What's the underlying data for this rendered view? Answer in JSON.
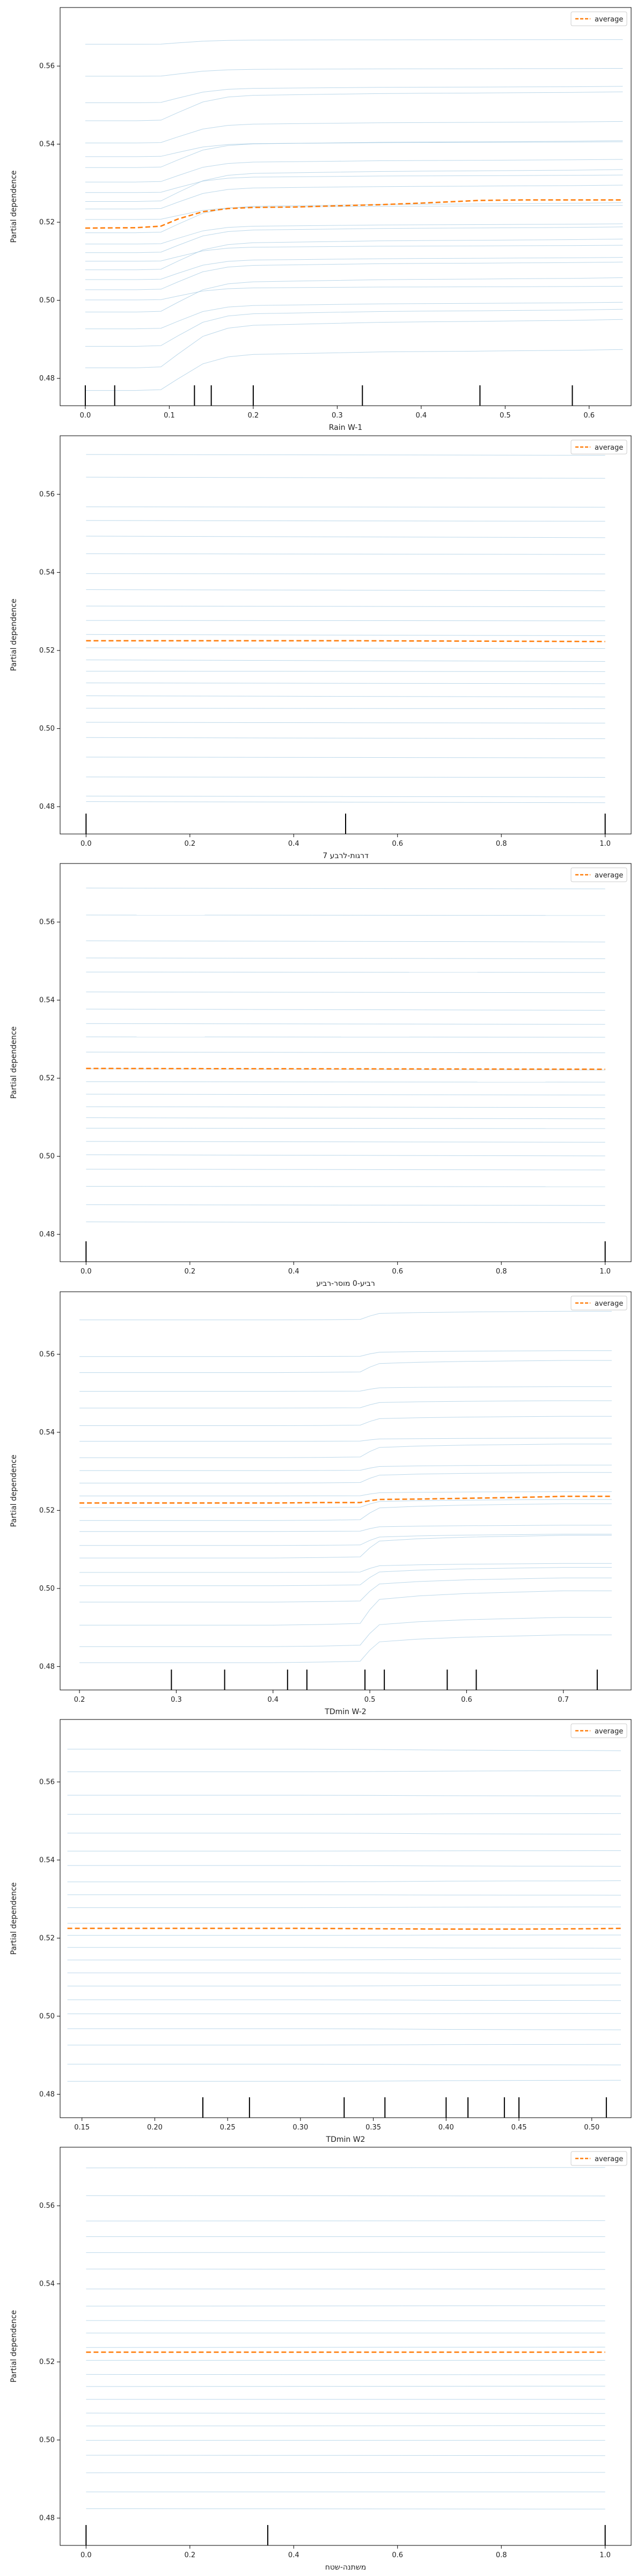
{
  "figure": {
    "panel_count": 6
  },
  "chart_data": [
    {
      "type": "line",
      "xlabel": "Rain W-1",
      "ylabel": "Partial dependence",
      "xlim": [
        -0.03,
        0.65
      ],
      "ylim": [
        0.473,
        0.575
      ],
      "xticks": [
        0.0,
        0.1,
        0.2,
        0.3,
        0.4,
        0.5,
        0.6
      ],
      "xtick_labels": [
        "0.0",
        "0.1",
        "0.2",
        "0.3",
        "0.4",
        "0.5",
        "0.6"
      ],
      "yticks": [
        0.48,
        0.5,
        0.52,
        0.54,
        0.56
      ],
      "ytick_labels": [
        "0.48",
        "0.50",
        "0.52",
        "0.54",
        "0.56"
      ],
      "grid": false,
      "legend": {
        "position": "top-right",
        "entries": [
          "average"
        ]
      },
      "colors": {
        "average": "#ff7f0e",
        "individual": "#a6cbe3",
        "rug": "#000000"
      },
      "x": [
        0.0,
        0.06,
        0.09,
        0.11,
        0.14,
        0.17,
        0.2,
        0.25,
        0.3,
        0.35,
        0.4,
        0.47,
        0.52,
        0.58,
        0.64
      ],
      "series": [
        {
          "name": "average",
          "values": [
            0.5185,
            0.5186,
            0.519,
            0.5208,
            0.5227,
            0.5235,
            0.5238,
            0.5239,
            0.5242,
            0.5245,
            0.5249,
            0.5256,
            0.5257,
            0.5257,
            0.5257
          ]
        }
      ],
      "ice_offsets": [
        0.0471,
        0.0389,
        0.0321,
        0.0275,
        0.0218,
        0.0183,
        0.0155,
        0.0118,
        0.0091,
        0.0068,
        0.0049,
        0.0022,
        -0.0012,
        -0.0041,
        -0.0063,
        -0.0085,
        -0.0107,
        -0.0132,
        -0.0158,
        -0.0184,
        -0.0215,
        -0.0258,
        -0.0303,
        -0.0358,
        -0.0416
      ],
      "ice_shape": [
        0,
        0,
        0.02,
        0.28,
        0.65,
        0.82,
        0.88,
        0.9,
        0.92,
        0.94,
        0.95,
        0.96,
        0.97,
        0.98,
        1.0
      ],
      "ice_amp": [
        0.0012,
        0.002,
        0.0042,
        0.0074,
        0.0055,
        0.0038,
        0.0069,
        0.0058,
        0.0045,
        0.0082,
        0.0061,
        0.0036,
        0.0077,
        0.0052,
        0.0066,
        0.0041,
        0.0079,
        0.0057,
        0.0071,
        0.0035,
        0.0088,
        0.0068,
        0.0095,
        0.0124,
        0.0105
      ],
      "rug": [
        0.0,
        0.035,
        0.13,
        0.15,
        0.2,
        0.33,
        0.47,
        0.58
      ]
    },
    {
      "type": "line",
      "xlabel": "7 דרגות-לרבע",
      "ylabel": "Partial dependence",
      "xlim": [
        -0.05,
        1.05
      ],
      "ylim": [
        0.473,
        0.575
      ],
      "xticks": [
        0.0,
        0.2,
        0.4,
        0.6,
        0.8,
        1.0
      ],
      "xtick_labels": [
        "0.0",
        "0.2",
        "0.4",
        "0.6",
        "0.8",
        "1.0"
      ],
      "yticks": [
        0.48,
        0.5,
        0.52,
        0.54,
        0.56
      ],
      "ytick_labels": [
        "0.48",
        "0.50",
        "0.52",
        "0.54",
        "0.56"
      ],
      "grid": false,
      "legend": {
        "position": "top-right",
        "entries": [
          "average"
        ]
      },
      "colors": {
        "average": "#ff7f0e",
        "individual": "#a6cbe3",
        "rug": "#000000"
      },
      "x": [
        0.0,
        0.5,
        1.0
      ],
      "series": [
        {
          "name": "average",
          "values": [
            0.5225,
            0.5225,
            0.5223
          ]
        }
      ],
      "ice_offsets": [
        0.0477,
        0.0419,
        0.0343,
        0.0308,
        0.0268,
        0.0223,
        0.0172,
        0.0131,
        0.0089,
        0.0052,
        0.0016,
        -0.0018,
        -0.0049,
        -0.0078,
        -0.0108,
        -0.0141,
        -0.0173,
        -0.0209,
        -0.0248,
        -0.0298,
        -0.0349,
        -0.0398,
        -0.0412
      ],
      "ice_shape": [
        0,
        0.5,
        1.0
      ],
      "ice_amp": [
        -0.0002,
        -0.0003,
        -0.0001,
        -0.0002,
        -0.0004,
        -0.0002,
        -0.0001,
        -0.0003,
        -0.0002,
        -0.0001,
        -0.0003,
        -0.0002,
        -0.0004,
        -0.0001,
        -0.0002,
        -0.0003,
        -0.0001,
        -0.0002,
        -0.0003,
        -0.0002,
        -0.0001,
        -0.0002,
        -0.0003
      ],
      "rug": [
        0.0,
        0.5,
        1.0
      ]
    },
    {
      "type": "line",
      "xlabel": "רביע-0 מוסר-רביע",
      "ylabel": "Partial dependence",
      "xlim": [
        -0.05,
        1.05
      ],
      "ylim": [
        0.473,
        0.575
      ],
      "xticks": [
        0.0,
        0.2,
        0.4,
        0.6,
        0.8,
        1.0
      ],
      "xtick_labels": [
        "0.0",
        "0.2",
        "0.4",
        "0.6",
        "0.8",
        "1.0"
      ],
      "yticks": [
        0.48,
        0.5,
        0.52,
        0.54,
        0.56
      ],
      "ytick_labels": [
        "0.48",
        "0.50",
        "0.52",
        "0.54",
        "0.56"
      ],
      "grid": false,
      "legend": {
        "position": "top-right",
        "entries": [
          "average"
        ]
      },
      "colors": {
        "average": "#ff7f0e",
        "individual": "#a6cbe3",
        "rug": "#000000"
      },
      "x": [
        0.0,
        1.0
      ],
      "series": [
        {
          "name": "average",
          "values": [
            0.5225,
            0.5223
          ]
        }
      ],
      "ice_offsets": [
        0.0462,
        0.0393,
        0.0327,
        0.0283,
        0.0247,
        0.0196,
        0.0152,
        0.0115,
        0.0081,
        0.0042,
        -0.0001,
        -0.0034,
        -0.0066,
        -0.0098,
        -0.0126,
        -0.0153,
        -0.0187,
        -0.0221,
        -0.0258,
        -0.0302,
        -0.0349,
        -0.0393
      ],
      "ice_shape": [
        0,
        1.0
      ],
      "ice_amp": [
        -0.0002,
        -0.0001,
        -0.0003,
        -0.0002,
        -0.0001,
        -0.0002,
        -0.0003,
        -0.0002,
        -0.0001,
        -0.0002,
        -0.0003,
        -0.0001,
        -0.0002,
        -0.0002,
        -0.0003,
        -0.0001,
        -0.0002,
        -0.0003,
        -0.0002,
        -0.0001,
        -0.0002,
        -0.0002
      ],
      "rug": [
        0.0,
        1.0
      ]
    },
    {
      "type": "line",
      "xlabel": "TDmin W-2",
      "ylabel": "Partial dependence",
      "xlim": [
        0.18,
        0.77
      ],
      "ylim": [
        0.474,
        0.576
      ],
      "xticks": [
        0.2,
        0.3,
        0.4,
        0.5,
        0.6,
        0.7
      ],
      "xtick_labels": [
        "0.2",
        "0.3",
        "0.4",
        "0.5",
        "0.6",
        "0.7"
      ],
      "yticks": [
        0.48,
        0.5,
        0.52,
        0.54,
        0.56
      ],
      "ytick_labels": [
        "0.48",
        "0.50",
        "0.52",
        "0.54",
        "0.56"
      ],
      "grid": false,
      "legend": {
        "position": "top-right",
        "entries": [
          "average"
        ]
      },
      "colors": {
        "average": "#ff7f0e",
        "individual": "#a6cbe3",
        "rug": "#000000"
      },
      "x": [
        0.2,
        0.3,
        0.35,
        0.4,
        0.45,
        0.49,
        0.5,
        0.51,
        0.55,
        0.6,
        0.65,
        0.7,
        0.75
      ],
      "series": [
        {
          "name": "average",
          "values": [
            0.5219,
            0.5219,
            0.5219,
            0.5219,
            0.522,
            0.522,
            0.5225,
            0.5228,
            0.5229,
            0.5231,
            0.5233,
            0.5236,
            0.5236
          ]
        }
      ],
      "ice_offsets": [
        0.0469,
        0.0375,
        0.0334,
        0.0286,
        0.0243,
        0.0198,
        0.0158,
        0.0116,
        0.0083,
        0.0051,
        0.0018,
        -0.0012,
        -0.0045,
        -0.0073,
        -0.0109,
        -0.0141,
        -0.0178,
        -0.0212,
        -0.0254,
        -0.0313,
        -0.0368,
        -0.0409
      ],
      "ice_shape": [
        0,
        0,
        0,
        0,
        0.02,
        0.05,
        0.45,
        0.75,
        0.85,
        0.92,
        0.96,
        1.0,
        1.0
      ],
      "ice_amp": [
        0.0022,
        0.0015,
        0.0031,
        0.0012,
        0.0019,
        0.0024,
        0.0008,
        0.0035,
        0.0014,
        0.0027,
        0.0011,
        0.0021,
        0.0043,
        0.0016,
        0.0029,
        0.0058,
        0.0023,
        0.0047,
        0.0062,
        0.0088,
        0.0075,
        0.0071
      ],
      "rug": [
        0.295,
        0.35,
        0.415,
        0.435,
        0.495,
        0.515,
        0.58,
        0.61,
        0.735
      ]
    },
    {
      "type": "line",
      "xlabel": "TDmin W2",
      "ylabel": "Partial dependence",
      "xlim": [
        0.135,
        0.527
      ],
      "ylim": [
        0.474,
        0.576
      ],
      "xticks": [
        0.15,
        0.2,
        0.25,
        0.3,
        0.35,
        0.4,
        0.45,
        0.5
      ],
      "xtick_labels": [
        "0.15",
        "0.20",
        "0.25",
        "0.30",
        "0.35",
        "0.40",
        "0.45",
        "0.50"
      ],
      "yticks": [
        0.48,
        0.5,
        0.52,
        0.54,
        0.56
      ],
      "ytick_labels": [
        "0.48",
        "0.50",
        "0.52",
        "0.54",
        "0.56"
      ],
      "grid": false,
      "legend": {
        "position": "top-right",
        "entries": [
          "average"
        ]
      },
      "colors": {
        "average": "#ff7f0e",
        "individual": "#a6cbe3",
        "rug": "#000000"
      },
      "x": [
        0.14,
        0.2,
        0.25,
        0.3,
        0.35,
        0.4,
        0.45,
        0.5,
        0.52
      ],
      "series": [
        {
          "name": "average",
          "values": [
            0.5225,
            0.5225,
            0.5225,
            0.5225,
            0.5224,
            0.5223,
            0.5223,
            0.5224,
            0.5225
          ]
        }
      ],
      "ice_offsets": [
        0.0459,
        0.0401,
        0.0341,
        0.0292,
        0.0244,
        0.0198,
        0.0161,
        0.0119,
        0.0086,
        0.0053,
        0.0013,
        -0.0018,
        -0.0049,
        -0.0081,
        -0.0114,
        -0.0148,
        -0.0183,
        -0.0219,
        -0.0257,
        -0.0299,
        -0.0348,
        -0.0392
      ],
      "ice_shape": [
        0,
        0,
        0,
        0,
        0.2,
        0.6,
        0.8,
        0.9,
        1.0
      ],
      "ice_amp": [
        -0.0004,
        0.0003,
        -0.0002,
        0.0002,
        -0.0003,
        0.0001,
        -0.0002,
        0.0003,
        -0.0001,
        0.0002,
        -0.0003,
        0.0001,
        -0.0002,
        0.0002,
        -0.0001,
        0.0003,
        -0.0002,
        0.0001,
        -0.0003,
        0.0002,
        -0.0002,
        0.0003
      ],
      "rug": [
        0.233,
        0.265,
        0.33,
        0.358,
        0.4,
        0.415,
        0.44,
        0.45,
        0.51
      ]
    },
    {
      "type": "line",
      "xlabel": "משתנה-שטח",
      "ylabel": "Partial dependence",
      "xlim": [
        -0.05,
        1.05
      ],
      "ylim": [
        0.473,
        0.575
      ],
      "xticks": [
        0.0,
        0.2,
        0.4,
        0.6,
        0.8,
        1.0
      ],
      "xtick_labels": [
        "0.0",
        "0.2",
        "0.4",
        "0.6",
        "0.8",
        "1.0"
      ],
      "yticks": [
        0.48,
        0.5,
        0.52,
        0.54,
        0.56
      ],
      "ytick_labels": [
        "0.48",
        "0.50",
        "0.52",
        "0.54",
        "0.56"
      ],
      "grid": false,
      "legend": {
        "position": "top-right",
        "entries": [
          "average"
        ]
      },
      "colors": {
        "average": "#ff7f0e",
        "individual": "#a6cbe3",
        "rug": "#000000"
      },
      "x": [
        0.0,
        0.35,
        1.0
      ],
      "series": [
        {
          "name": "average",
          "values": [
            0.5225,
            0.5225,
            0.5225
          ]
        }
      ],
      "ice_offsets": [
        0.0472,
        0.0401,
        0.0336,
        0.0296,
        0.0255,
        0.0213,
        0.0162,
        0.0118,
        0.0081,
        0.0049,
        0.0012,
        -0.0021,
        -0.0057,
        -0.0088,
        -0.0121,
        -0.0156,
        -0.0189,
        -0.0226,
        -0.0264,
        -0.0309,
        -0.0358,
        -0.0401
      ],
      "ice_shape": [
        0,
        0.3,
        1.0
      ],
      "ice_amp": [
        0.0001,
        -0.0001,
        0.0001,
        0,
        0.0001,
        -0.0001,
        0,
        0.0001,
        -0.0001,
        0,
        0.0001,
        0,
        -0.0001,
        0.0001,
        0,
        -0.0001,
        0.0001,
        0,
        -0.0001,
        0.0001,
        0,
        -0.0001
      ],
      "rug": [
        0.0,
        0.35,
        1.0
      ]
    }
  ]
}
